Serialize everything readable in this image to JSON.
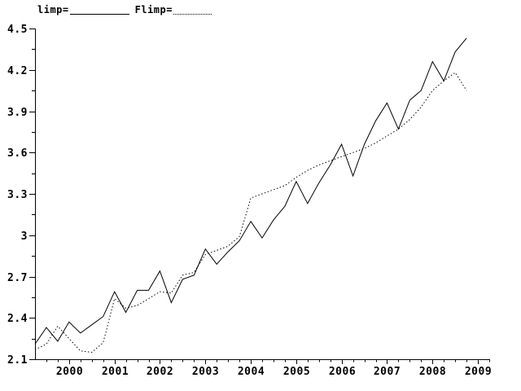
{
  "chart_data": {
    "type": "line",
    "title": "",
    "xlabel": "",
    "ylabel": "",
    "grid": false,
    "colors": {
      "foreground": "#000000",
      "background": "#ffffff"
    },
    "legend": {
      "position": "top-left",
      "items": [
        {
          "label": "limp=",
          "style": "solid"
        },
        {
          "label": "Flimp=",
          "style": "dotted"
        }
      ]
    },
    "xlim": [
      1999.25,
      2009.25
    ],
    "ylim": [
      2.1,
      4.5
    ],
    "xtick_values": [
      2000,
      2001,
      2002,
      2003,
      2004,
      2005,
      2006,
      2007,
      2008,
      2009
    ],
    "xtick_labels": [
      "2000",
      "2001",
      "2002",
      "2003",
      "2004",
      "2005",
      "2006",
      "2007",
      "2008",
      "2009"
    ],
    "xtick_minor_step": 0.25,
    "ytick_values": [
      2.1,
      2.4,
      2.7,
      3.0,
      3.3,
      3.6,
      3.9,
      4.2,
      4.5
    ],
    "ytick_labels": [
      "2.1",
      "2.4",
      "2.7",
      "3",
      "3.3",
      "3.6",
      "3.9",
      "4.2",
      "4.5"
    ],
    "ytick_minor_step": 0.15,
    "x": [
      1999.25,
      1999.5,
      1999.75,
      2000.0,
      2000.25,
      2000.5,
      2000.75,
      2001.0,
      2001.25,
      2001.5,
      2001.75,
      2002.0,
      2002.25,
      2002.5,
      2002.75,
      2003.0,
      2003.25,
      2003.5,
      2003.75,
      2004.0,
      2004.25,
      2004.5,
      2004.75,
      2005.0,
      2005.25,
      2005.5,
      2005.75,
      2006.0,
      2006.25,
      2006.5,
      2006.75,
      2007.0,
      2007.25,
      2007.5,
      2007.75,
      2008.0,
      2008.25,
      2008.5,
      2008.75
    ],
    "series": [
      {
        "name": "limp",
        "legend_label": "limp=",
        "line_style": "solid",
        "values": [
          2.21,
          2.33,
          2.23,
          2.37,
          2.29,
          2.35,
          2.41,
          2.59,
          2.44,
          2.6,
          2.6,
          2.74,
          2.51,
          2.68,
          2.71,
          2.9,
          2.79,
          2.88,
          2.96,
          3.1,
          2.98,
          3.11,
          3.21,
          3.39,
          3.23,
          3.38,
          3.51,
          3.66,
          3.43,
          3.66,
          3.83,
          3.96,
          3.77,
          3.98,
          4.05,
          4.26,
          4.12,
          4.33,
          4.43
        ]
      },
      {
        "name": "Flimp",
        "legend_label": "Flimp=",
        "line_style": "dotted",
        "values": [
          2.17,
          2.21,
          2.34,
          2.25,
          2.16,
          2.15,
          2.22,
          2.54,
          2.47,
          2.49,
          2.54,
          2.59,
          2.58,
          2.71,
          2.73,
          2.86,
          2.89,
          2.92,
          2.99,
          3.27,
          3.3,
          3.33,
          3.36,
          3.42,
          3.47,
          3.51,
          3.54,
          3.57,
          3.6,
          3.63,
          3.67,
          3.72,
          3.77,
          3.84,
          3.93,
          4.05,
          4.12,
          4.18,
          4.05
        ]
      }
    ]
  }
}
